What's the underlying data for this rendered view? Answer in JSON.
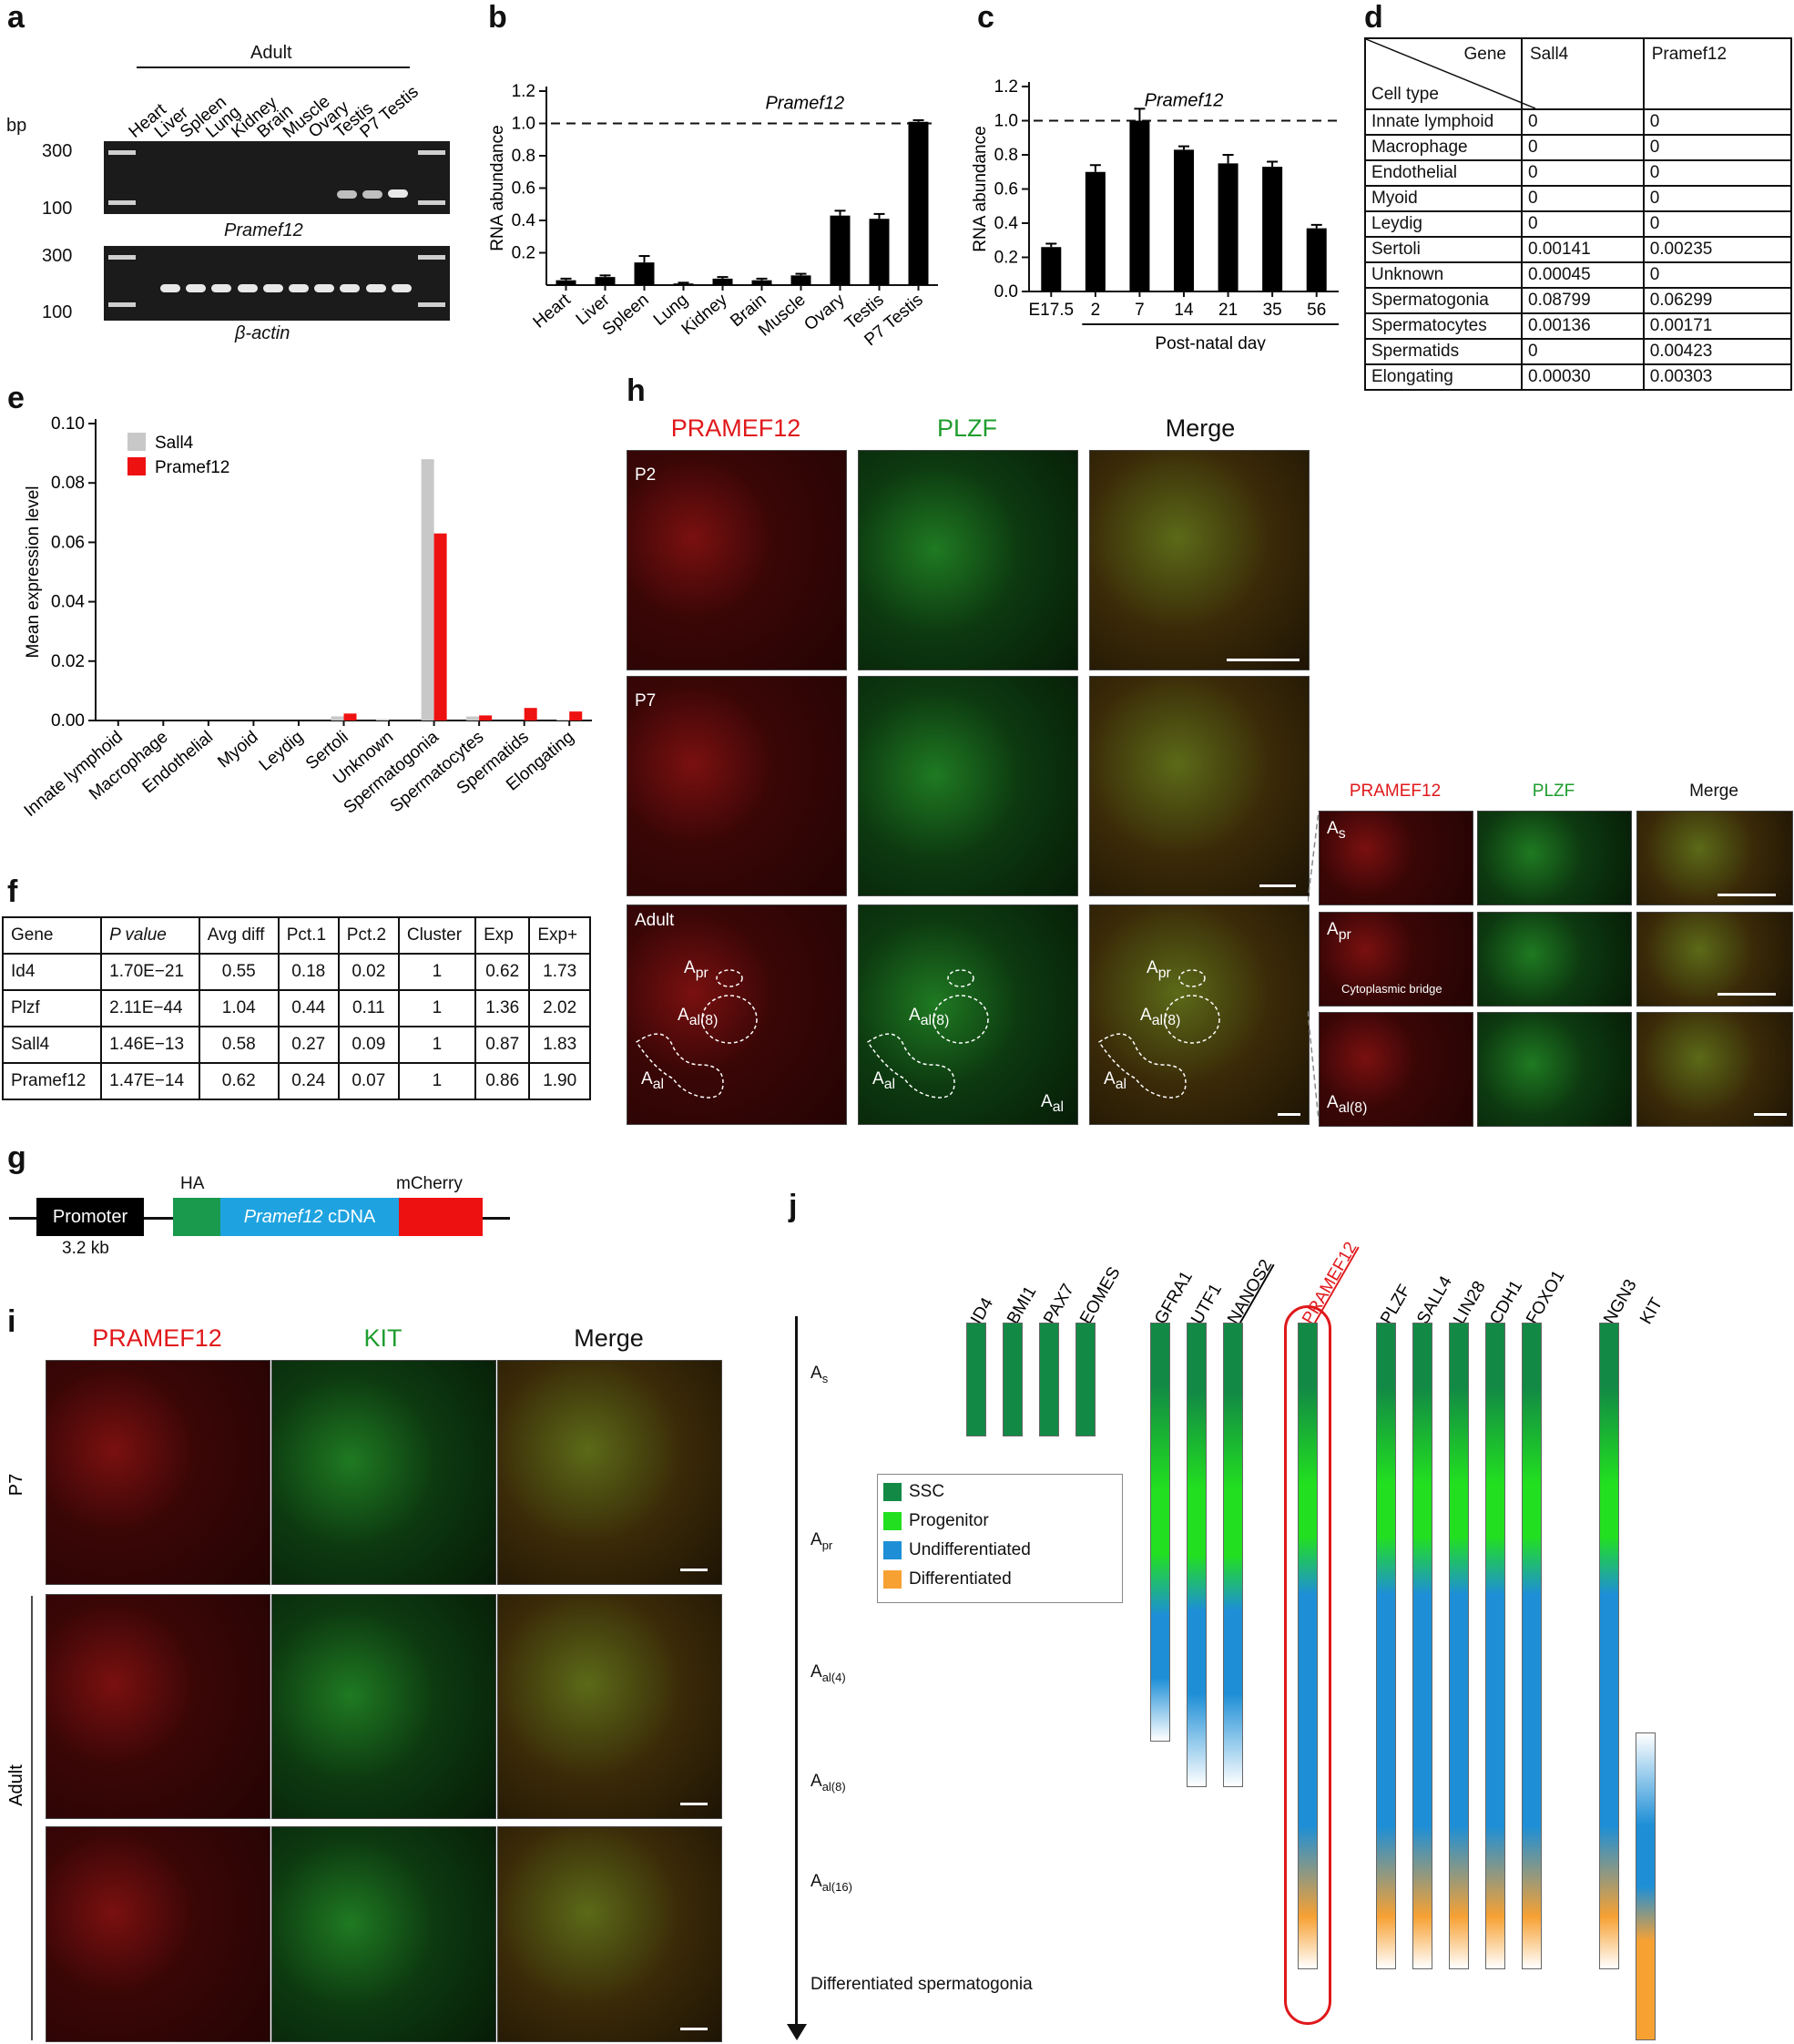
{
  "panels": {
    "a": "a",
    "b": "b",
    "c": "c",
    "d": "d",
    "e": "e",
    "f": "f",
    "g": "g",
    "h": "h",
    "i": "i",
    "j": "j"
  },
  "panel_a": {
    "group_label": "Adult",
    "bp_label": "bp",
    "lanes": [
      "Heart",
      "Liver",
      "Spleen",
      "Lung",
      "Kidney",
      "Brain",
      "Muscle",
      "Ovary",
      "Testis",
      "P7 Testis"
    ],
    "ladder_labels": [
      "300",
      "100"
    ],
    "gene_top": "Pramef12",
    "gene_bottom": "β-actin"
  },
  "chart_data": [
    {
      "type": "bar",
      "panel": "b",
      "title": "Pramef12",
      "ylabel": "RNA abundance",
      "categories": [
        "Heart",
        "Liver",
        "Spleen",
        "Lung",
        "Kidney",
        "Brain",
        "Muscle",
        "Ovary",
        "Testis",
        "P7 Testis"
      ],
      "values": [
        0.03,
        0.05,
        0.14,
        0.01,
        0.04,
        0.03,
        0.06,
        0.43,
        0.41,
        1.01
      ],
      "errors": [
        0.01,
        0.01,
        0.04,
        0.005,
        0.01,
        0.01,
        0.01,
        0.03,
        0.03,
        0.01
      ],
      "ylim": [
        0,
        1.2
      ],
      "yticks": [
        "0.2",
        "0.4",
        "0.6",
        "0.8",
        "1.0",
        "1.2"
      ],
      "reference_line": 1.0
    },
    {
      "type": "bar",
      "panel": "c",
      "title": "Pramef12",
      "ylabel": "RNA abundance",
      "xlabel": "Post-natal day",
      "categories": [
        "E17.5",
        "2",
        "7",
        "14",
        "21",
        "35",
        "56"
      ],
      "values": [
        0.26,
        0.7,
        1.0,
        0.83,
        0.75,
        0.73,
        0.37
      ],
      "errors": [
        0.02,
        0.04,
        0.07,
        0.02,
        0.05,
        0.03,
        0.02
      ],
      "ylim": [
        0,
        1.2
      ],
      "yticks": [
        "0.0",
        "0.2",
        "0.4",
        "0.6",
        "0.8",
        "1.0",
        "1.2"
      ],
      "reference_line": 1.0
    },
    {
      "type": "bar",
      "panel": "e",
      "ylabel": "Mean expression level",
      "categories": [
        "Innate lymphoid",
        "Macrophage",
        "Endothelial",
        "Myoid",
        "Leydig",
        "Sertoli",
        "Unknown",
        "Spermatogonia",
        "Spermatocytes",
        "Spermatids",
        "Elongating"
      ],
      "series": [
        {
          "name": "Sall4",
          "color": "#c8c8c8",
          "values": [
            0,
            0,
            0,
            0,
            0,
            0.00141,
            0.00045,
            0.08799,
            0.00136,
            0,
            0.0003
          ]
        },
        {
          "name": "Pramef12",
          "color": "#ee1111",
          "values": [
            0,
            0,
            0,
            0,
            0,
            0.00235,
            0,
            0.06299,
            0.00171,
            0.00423,
            0.00303
          ]
        }
      ],
      "ylim": [
        0,
        0.1
      ],
      "yticks": [
        "0.00",
        "0.02",
        "0.04",
        "0.06",
        "0.08",
        "0.10"
      ],
      "legend": "top-left"
    },
    {
      "type": "table",
      "panel": "d",
      "corner_gene": "Gene",
      "corner_cell": "Cell type",
      "columns": [
        "Sall4",
        "Pramef12"
      ],
      "rows": [
        [
          "Innate lymphoid",
          "0",
          "0"
        ],
        [
          "Macrophage",
          "0",
          "0"
        ],
        [
          "Endothelial",
          "0",
          "0"
        ],
        [
          "Myoid",
          "0",
          "0"
        ],
        [
          "Leydig",
          "0",
          "0"
        ],
        [
          "Sertoli",
          "0.00141",
          "0.00235"
        ],
        [
          "Unknown",
          "0.00045",
          "0"
        ],
        [
          "Spermatogonia",
          "0.08799",
          "0.06299"
        ],
        [
          "Spermatocytes",
          "0.00136",
          "0.00171"
        ],
        [
          "Spermatids",
          "0",
          "0.00423"
        ],
        [
          "Elongating",
          "0.00030",
          "0.00303"
        ]
      ]
    },
    {
      "type": "table",
      "panel": "f",
      "columns": [
        "Gene",
        "P value",
        "Avg diff",
        "Pct.1",
        "Pct.2",
        "Cluster",
        "Exp",
        "Exp+"
      ],
      "rows": [
        [
          "Id4",
          "1.70E−21",
          "0.55",
          "0.18",
          "0.02",
          "1",
          "0.62",
          "1.73"
        ],
        [
          "Plzf",
          "2.11E−44",
          "1.04",
          "0.44",
          "0.11",
          "1",
          "1.36",
          "2.02"
        ],
        [
          "Sall4",
          "1.46E−13",
          "0.58",
          "0.27",
          "0.09",
          "1",
          "0.87",
          "1.83"
        ],
        [
          "Pramef12",
          "1.47E−14",
          "0.62",
          "0.24",
          "0.07",
          "1",
          "0.86",
          "1.90"
        ]
      ]
    }
  ],
  "panel_g": {
    "promoter": "Promoter",
    "promoter_size": "3.2 kb",
    "ha": "HA",
    "cdna_italic": "Pramef12",
    "cdna_suffix": " cDNA",
    "mcherry": "mCherry",
    "colors": {
      "promoter": "#000000",
      "ha": "#1a9a4c",
      "cdna": "#1ea3e0",
      "mcherry": "#ee1111"
    }
  },
  "panel_h": {
    "col_titles": [
      "PRAMEF12",
      "PLZF",
      "Merge"
    ],
    "rows": [
      "P2",
      "P7",
      "Adult"
    ],
    "adult_labels": {
      "apr": "A",
      "apr_sub": "pr",
      "aal8": "A",
      "aal8_sub": "al(8)",
      "aal": "A",
      "aal_sub": "al"
    },
    "inset_titles": [
      "PRAMEF12",
      "PLZF",
      "Merge"
    ],
    "inset_rows": [
      {
        "main": "A",
        "sub": "s"
      },
      {
        "main": "A",
        "sub": "pr",
        "note": "Cytoplasmic bridge"
      },
      {
        "main": "A",
        "sub": "al(8)"
      }
    ]
  },
  "panel_i": {
    "col_titles": [
      "PRAMEF12",
      "KIT",
      "Merge"
    ],
    "row_labels": [
      "P7",
      "Adult"
    ]
  },
  "panel_j": {
    "stages": [
      {
        "main": "A",
        "sub": "s"
      },
      {
        "main": "A",
        "sub": "pr"
      },
      {
        "main": "A",
        "sub": "al(4)"
      },
      {
        "main": "A",
        "sub": "al(8)"
      },
      {
        "main": "A",
        "sub": "al(16)"
      },
      {
        "main": "Differentiated spermatogonia",
        "sub": ""
      }
    ],
    "genes": [
      "ID4",
      "BMI1",
      "PAX7",
      "EOMES",
      "GFRA1",
      "UTF1",
      "NANOS2",
      "PRAMEF12",
      "PLZF",
      "SALL4",
      "LIN28",
      "CDH1",
      "FOXO1",
      "NGN3",
      "KIT"
    ],
    "legend": [
      {
        "label": "SSC",
        "color": "#128a45"
      },
      {
        "label": "Progenitor",
        "color": "#22e01f"
      },
      {
        "label": "Undifferentiated",
        "color": "#1e8fd6"
      },
      {
        "label": "Differentiated",
        "color": "#f7a133"
      }
    ]
  }
}
